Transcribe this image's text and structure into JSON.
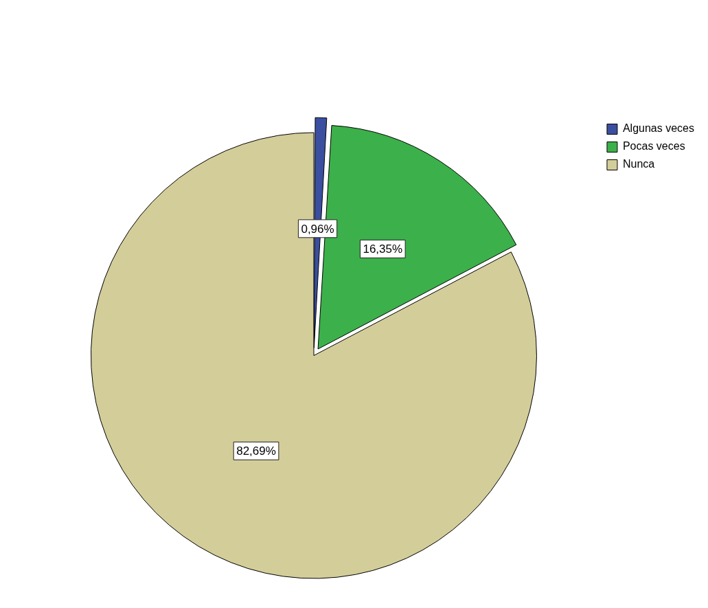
{
  "chart_data": {
    "type": "pie",
    "categories": [
      "Algunas veces",
      "Pocas veces",
      "Nunca"
    ],
    "values": [
      0.96,
      16.35,
      82.69
    ],
    "colors": [
      "#3b4fa0",
      "#3cb04a",
      "#d3cd9a"
    ],
    "value_labels": [
      "0,96%",
      "16,35%",
      "82,69%"
    ],
    "legend": "top right"
  }
}
